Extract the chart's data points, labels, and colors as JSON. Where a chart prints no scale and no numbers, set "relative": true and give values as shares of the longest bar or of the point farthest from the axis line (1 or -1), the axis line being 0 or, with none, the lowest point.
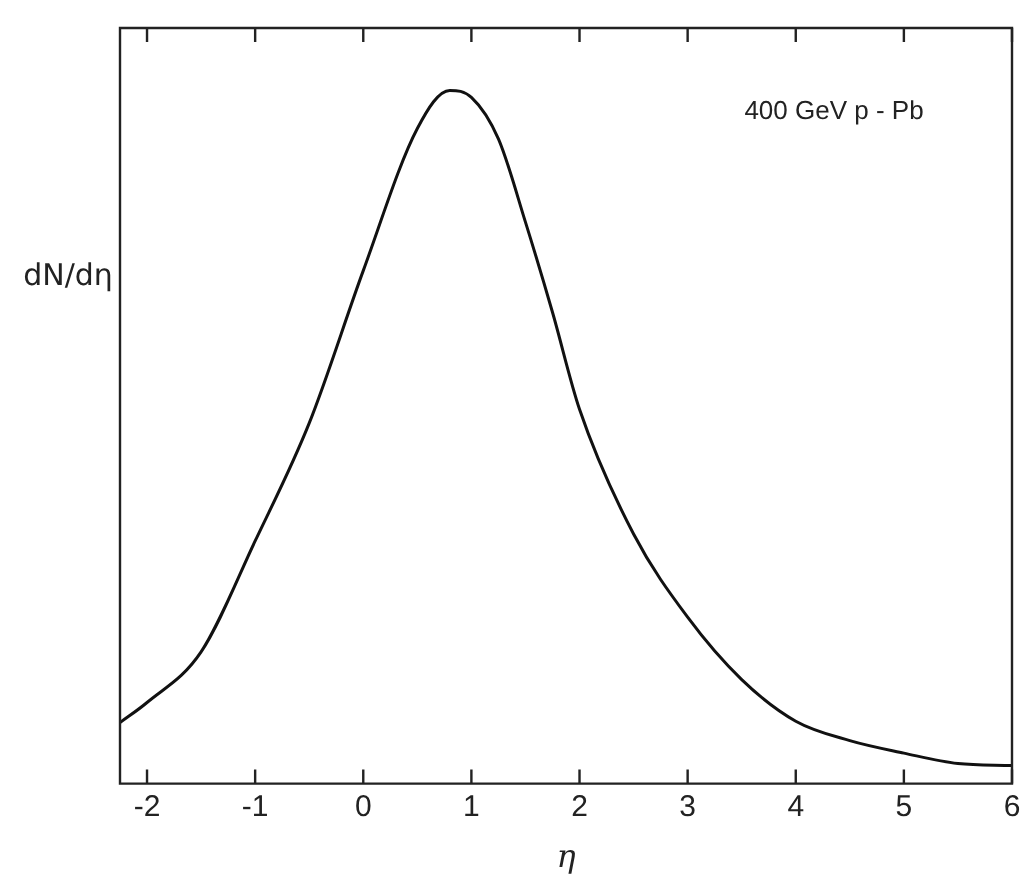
{
  "chart_data": {
    "type": "line",
    "relative": true,
    "xlabel": "η",
    "ylabel": "dN/dη",
    "annotations": [
      "400 GeV p - Pb"
    ],
    "xlim": [
      -2.25,
      6
    ],
    "xticks": [
      -2,
      -1,
      0,
      1,
      2,
      3,
      4,
      5,
      6
    ],
    "grid": false,
    "legend": false,
    "marker": "none",
    "line_style": "solid",
    "series": [
      {
        "color": "#111111",
        "x": [
          -2.25,
          -2,
          -1.5,
          -1,
          -0.5,
          0,
          0.5,
          0.8,
          1,
          1.25,
          1.5,
          1.75,
          2,
          2.5,
          3,
          3.5,
          4,
          4.5,
          5,
          5.5,
          6
        ],
        "values": [
          0.088,
          0.117,
          0.19,
          0.35,
          0.52,
          0.74,
          0.945,
          1,
          0.99,
          0.93,
          0.81,
          0.68,
          0.54,
          0.36,
          0.24,
          0.15,
          0.09,
          0.062,
          0.044,
          0.029,
          0.026
        ]
      }
    ]
  }
}
